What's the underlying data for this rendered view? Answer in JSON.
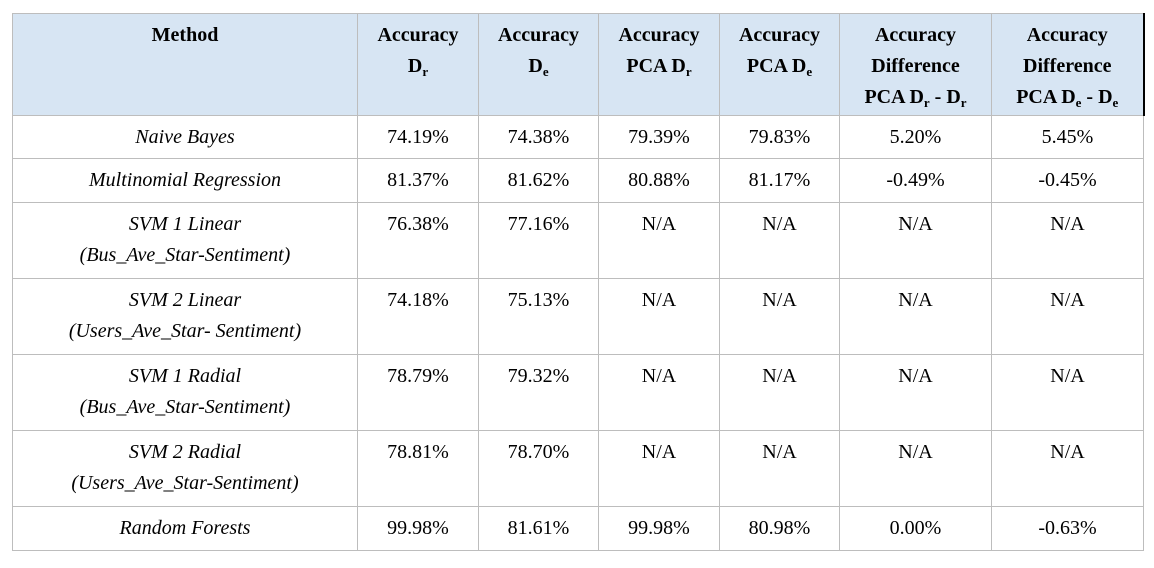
{
  "header": {
    "method": "Method",
    "col1": {
      "title": "Accuracy",
      "d": "D",
      "sub": "r"
    },
    "col2": {
      "title": "Accuracy",
      "d": "D",
      "sub": "e"
    },
    "col3": {
      "title": "Accuracy",
      "pca": "PCA D",
      "sub": "r"
    },
    "col4": {
      "title": "Accuracy",
      "pca": "PCA D",
      "sub": "e"
    },
    "col5": {
      "title": "Accuracy",
      "line2": "Difference",
      "pca": "PCA D",
      "sub1": "r",
      "minus": " - D",
      "sub2": "r"
    },
    "col6": {
      "title": "Accuracy",
      "line2": "Difference",
      "pca": "PCA D",
      "sub1": "e",
      "minus": " - D",
      "sub2": "e"
    }
  },
  "rows": [
    {
      "method_line1": "Naive Bayes",
      "method_line2": "",
      "values": [
        "74.19%",
        "74.38%",
        "79.39%",
        "79.83%",
        "5.20%",
        "5.45%"
      ]
    },
    {
      "method_line1": "Multinomial Regression",
      "method_line2": "",
      "values": [
        "81.37%",
        "81.62%",
        "80.88%",
        "81.17%",
        "-0.49%",
        "-0.45%"
      ]
    },
    {
      "method_line1": "SVM 1 Linear",
      "method_line2": "(Bus_Ave_Star-Sentiment)",
      "values": [
        "76.38%",
        "77.16%",
        "N/A",
        "N/A",
        "N/A",
        "N/A"
      ]
    },
    {
      "method_line1": "SVM 2 Linear",
      "method_line2": "(Users_Ave_Star- Sentiment)",
      "values": [
        "74.18%",
        "75.13%",
        "N/A",
        "N/A",
        "N/A",
        "N/A"
      ]
    },
    {
      "method_line1": "SVM 1 Radial",
      "method_line2": "(Bus_Ave_Star-Sentiment)",
      "values": [
        "78.79%",
        "79.32%",
        "N/A",
        "N/A",
        "N/A",
        "N/A"
      ]
    },
    {
      "method_line1": "SVM 2 Radial",
      "method_line2": "(Users_Ave_Star-Sentiment)",
      "values": [
        "78.81%",
        "78.70%",
        "N/A",
        "N/A",
        "N/A",
        "N/A"
      ]
    },
    {
      "method_line1": "Random Forests",
      "method_line2": "",
      "values": [
        "99.98%",
        "81.61%",
        "99.98%",
        "80.98%",
        "0.00%",
        "-0.63%"
      ]
    }
  ]
}
